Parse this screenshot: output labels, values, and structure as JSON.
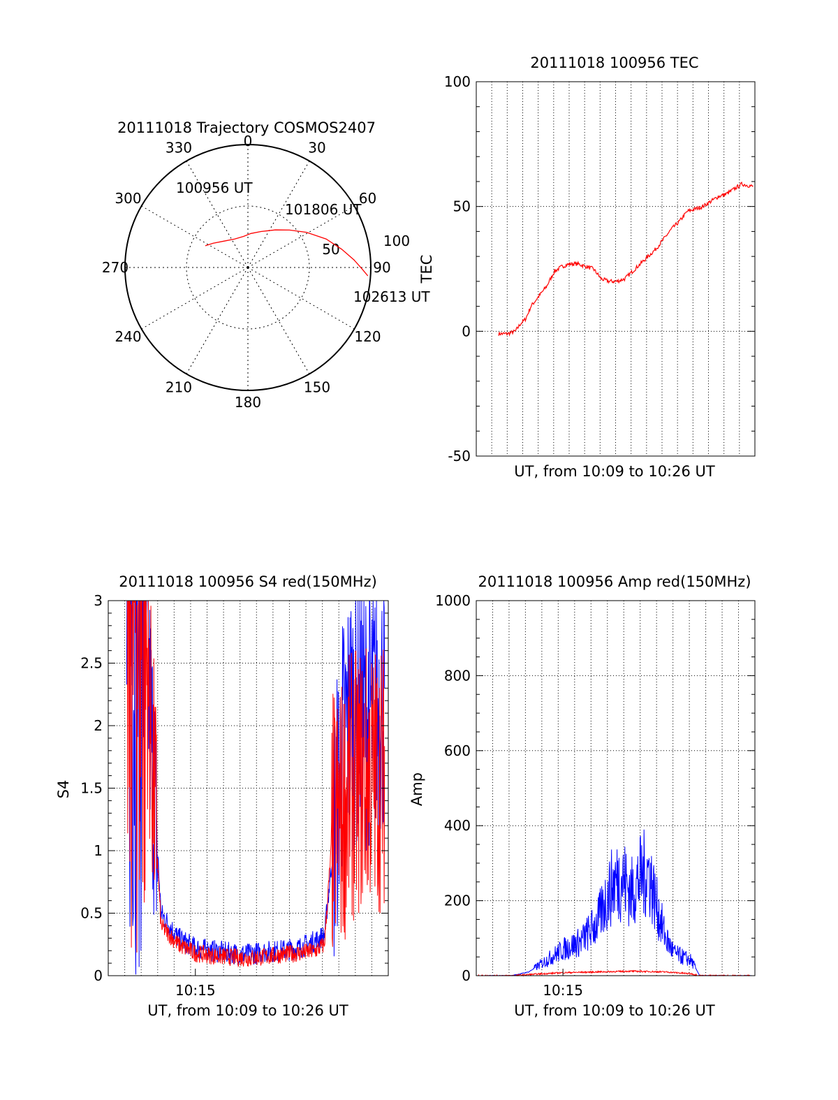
{
  "colors": {
    "red": "#ff0000",
    "blue": "#0000ff",
    "axis": "#000000",
    "grid": "#000000",
    "background": "#ffffff"
  },
  "chart_data": [
    {
      "id": "trajectory",
      "type": "polar",
      "title": "20111018 Trajectory COSMOS2407",
      "azimuth_labels": [
        "0",
        "30",
        "60",
        "90",
        "120",
        "150",
        "180",
        "210",
        "240",
        "270",
        "300",
        "330"
      ],
      "radius_labels": [
        "50",
        "100"
      ],
      "elevation_range": [
        0,
        90
      ],
      "grid": true,
      "annotations": [
        "100956 UT",
        "101806 UT",
        "102613 UT"
      ],
      "series": [
        {
          "color": "red",
          "points": [
            {
              "az": 297,
              "el": 55
            },
            {
              "az": 305,
              "el": 59
            },
            {
              "az": 318,
              "el": 64
            },
            {
              "az": 335,
              "el": 67
            },
            {
              "az": 352,
              "el": 67
            },
            {
              "az": 5,
              "el": 65
            },
            {
              "az": 20,
              "el": 62
            },
            {
              "az": 36,
              "el": 56
            },
            {
              "az": 48,
              "el": 49
            },
            {
              "az": 59,
              "el": 40
            },
            {
              "az": 70,
              "el": 29
            },
            {
              "az": 79,
              "el": 20
            },
            {
              "az": 86,
              "el": 12
            },
            {
              "az": 91,
              "el": 6
            },
            {
              "az": 94,
              "el": 2
            }
          ]
        }
      ]
    },
    {
      "id": "tec",
      "type": "line",
      "title": "20111018 100956 TEC",
      "xlabel": "UT, from 10:09 to 10:26 UT",
      "ylabel": "TEC",
      "xlim": [
        "10:08",
        "10:27"
      ],
      "ylim": [
        -50,
        100
      ],
      "yticks": [
        "-50",
        "0",
        "50",
        "100"
      ],
      "grid": true,
      "series": [
        {
          "color": "red",
          "x": [
            "10:09:56",
            "10:10:30",
            "10:11:00",
            "10:11:20",
            "10:11:40",
            "10:12:00",
            "10:12:30",
            "10:13:00",
            "10:13:30",
            "10:14:00",
            "10:14:30",
            "10:15:00",
            "10:15:30",
            "10:16:00",
            "10:16:30",
            "10:17:00",
            "10:17:30",
            "10:18:00",
            "10:18:30",
            "10:19:00",
            "10:19:30",
            "10:20:00",
            "10:20:30",
            "10:21:00",
            "10:21:30",
            "10:22:00",
            "10:22:30",
            "10:23:00",
            "10:23:30",
            "10:24:00",
            "10:24:30",
            "10:25:00",
            "10:25:30",
            "10:26:13"
          ],
          "values": [
            -1,
            -1,
            0,
            3,
            5,
            10,
            14,
            18,
            24,
            26,
            27,
            27,
            26,
            25,
            21,
            20,
            20,
            21,
            24,
            27,
            30,
            33,
            37,
            41,
            44,
            48,
            49,
            50,
            52,
            54,
            55,
            57,
            59,
            58
          ]
        }
      ]
    },
    {
      "id": "s4",
      "type": "line",
      "title": "20111018 100956 S4 red(150MHz)",
      "xlabel": "UT, from 10:09 to 10:26 UT",
      "ylabel": "S4",
      "xlim": [
        "10:09:56",
        "10:26:13"
      ],
      "ylim": [
        0,
        3
      ],
      "xticks": [
        "10:15"
      ],
      "yticks": [
        "0",
        "0.5",
        "1",
        "1.5",
        "2",
        "2.5",
        "3"
      ],
      "grid": true,
      "series": [
        {
          "color": "blue",
          "x": [
            "10:11:00",
            "10:12:00",
            "10:13:00",
            "10:14:00",
            "10:15:00",
            "10:16:00",
            "10:17:00",
            "10:18:00",
            "10:19:00",
            "10:20:00",
            "10:21:00",
            "10:22:00",
            "10:22:30",
            "10:23:00",
            "10:23:30",
            "10:24:00",
            "10:25:00",
            "10:26:00"
          ],
          "values": [
            3.0,
            3.0,
            0.5,
            0.3,
            0.22,
            0.2,
            0.18,
            0.17,
            0.19,
            0.2,
            0.22,
            0.28,
            0.32,
            1.0,
            1.8,
            2.1,
            2.1,
            2.2
          ]
        },
        {
          "color": "red",
          "x": [
            "10:11:00",
            "10:12:00",
            "10:13:00",
            "10:14:00",
            "10:15:00",
            "10:16:00",
            "10:17:00",
            "10:18:00",
            "10:19:00",
            "10:20:00",
            "10:21:00",
            "10:22:00",
            "10:22:30",
            "10:23:00",
            "10:23:30",
            "10:24:00",
            "10:25:00",
            "10:26:00"
          ],
          "values": [
            3.0,
            3.0,
            0.4,
            0.25,
            0.18,
            0.16,
            0.15,
            0.14,
            0.15,
            0.17,
            0.18,
            0.2,
            0.25,
            1.2,
            1.3,
            1.5,
            1.6,
            1.6
          ]
        }
      ]
    },
    {
      "id": "amp",
      "type": "line",
      "title": "20111018 100956 Amp red(150MHz)",
      "xlabel": "UT, from 10:09 to 10:26 UT",
      "ylabel": "Amp",
      "xlim": [
        "10:09:56",
        "10:26:13"
      ],
      "ylim": [
        0,
        1000
      ],
      "xticks": [
        "10:15"
      ],
      "yticks": [
        "0",
        "200",
        "400",
        "600",
        "800",
        "1000"
      ],
      "grid": true,
      "series": [
        {
          "color": "blue",
          "x": [
            "10:10:00",
            "10:12:00",
            "10:13:00",
            "10:14:00",
            "10:15:00",
            "10:16:00",
            "10:17:00",
            "10:17:30",
            "10:18:00",
            "10:18:30",
            "10:19:00",
            "10:19:30",
            "10:20:00",
            "10:20:30",
            "10:21:00",
            "10:21:30",
            "10:22:00",
            "10:22:30",
            "10:23:00",
            "10:24:00",
            "10:26:00"
          ],
          "values": [
            0,
            0,
            10,
            40,
            70,
            90,
            140,
            200,
            250,
            260,
            220,
            260,
            280,
            180,
            100,
            60,
            50,
            40,
            0,
            0,
            0
          ]
        },
        {
          "color": "red",
          "x": [
            "10:10:00",
            "10:12:00",
            "10:13:00",
            "10:15:00",
            "10:17:00",
            "10:19:00",
            "10:21:00",
            "10:22:30",
            "10:23:00",
            "10:26:00"
          ],
          "values": [
            0,
            0,
            3,
            8,
            10,
            12,
            10,
            5,
            0,
            0
          ]
        }
      ]
    }
  ]
}
